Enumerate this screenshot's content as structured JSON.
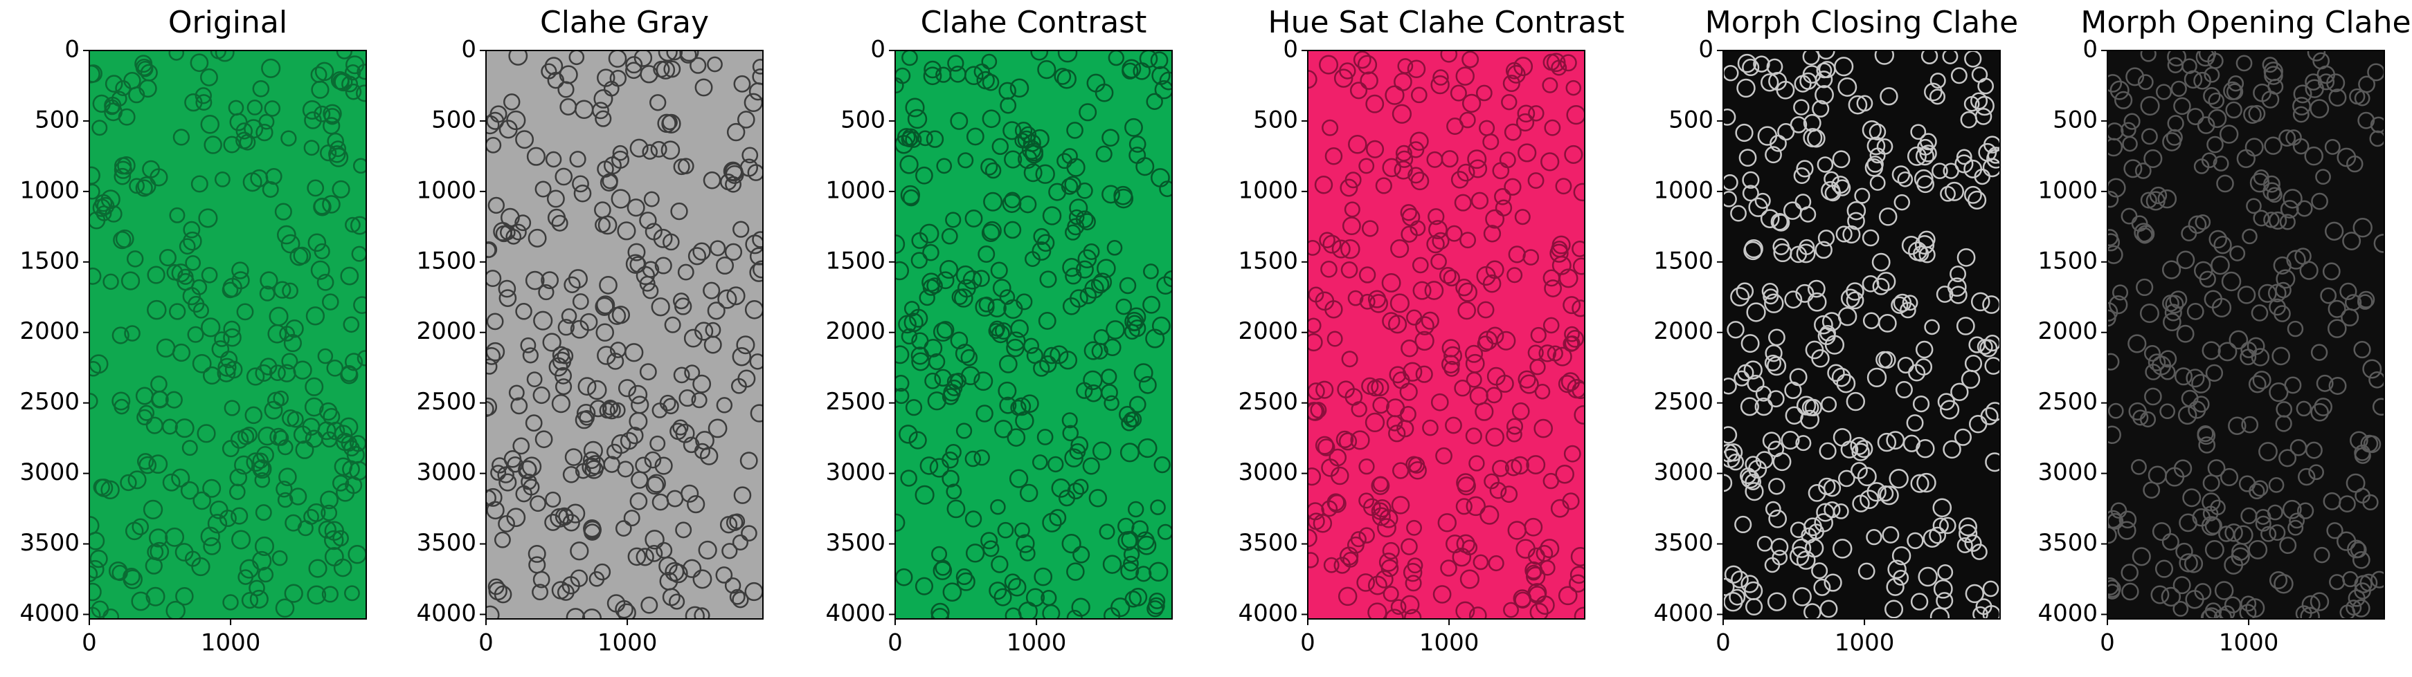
{
  "chart_data": [
    {
      "type": "image",
      "title": "Original",
      "xlim": [
        0,
        1960
      ],
      "ylim": [
        4032,
        0
      ],
      "xticks": [
        0,
        1000
      ],
      "yticks": [
        0,
        500,
        1000,
        1500,
        2000,
        2500,
        3000,
        3500,
        4000
      ],
      "color": "#0fa84f",
      "cell_color": "#0a6b33"
    },
    {
      "type": "image",
      "title": "Clahe Gray",
      "xlim": [
        0,
        1960
      ],
      "ylim": [
        4032,
        0
      ],
      "xticks": [
        0,
        1000
      ],
      "yticks": [
        0,
        500,
        1000,
        1500,
        2000,
        2500,
        3000,
        3500,
        4000
      ],
      "color": "#a9a9a9",
      "cell_color": "#3c3c3c"
    },
    {
      "type": "image",
      "title": "Clahe Contrast",
      "xlim": [
        0,
        1960
      ],
      "ylim": [
        4032,
        0
      ],
      "xticks": [
        0,
        1000
      ],
      "yticks": [
        0,
        500,
        1000,
        1500,
        2000,
        2500,
        3000,
        3500,
        4000
      ],
      "color": "#0bab52",
      "cell_color": "#05582a"
    },
    {
      "type": "image",
      "title": "Hue Sat Clahe Contrast",
      "xlim": [
        0,
        1960
      ],
      "ylim": [
        4032,
        0
      ],
      "xticks": [
        0,
        1000
      ],
      "yticks": [
        0,
        500,
        1000,
        1500,
        2000,
        2500,
        3000,
        3500,
        4000
      ],
      "color": "#f0206a",
      "cell_color": "#8c0f3c"
    },
    {
      "type": "image",
      "title": "Morph Closing Clahe",
      "xlim": [
        0,
        1960
      ],
      "ylim": [
        4032,
        0
      ],
      "xticks": [
        0,
        1000
      ],
      "yticks": [
        0,
        500,
        1000,
        1500,
        2000,
        2500,
        3000,
        3500,
        4000
      ],
      "color": "#0c0c0c",
      "cell_color": "#c8c8c8"
    },
    {
      "type": "image",
      "title": "Morph Opening Clahe",
      "xlim": [
        0,
        1960
      ],
      "ylim": [
        4032,
        0
      ],
      "xticks": [
        0,
        1000
      ],
      "yticks": [
        0,
        500,
        1000,
        1500,
        2000,
        2500,
        3000,
        3500,
        4000
      ],
      "color": "#0e0e0e",
      "cell_color": "#5a5a5a"
    }
  ]
}
